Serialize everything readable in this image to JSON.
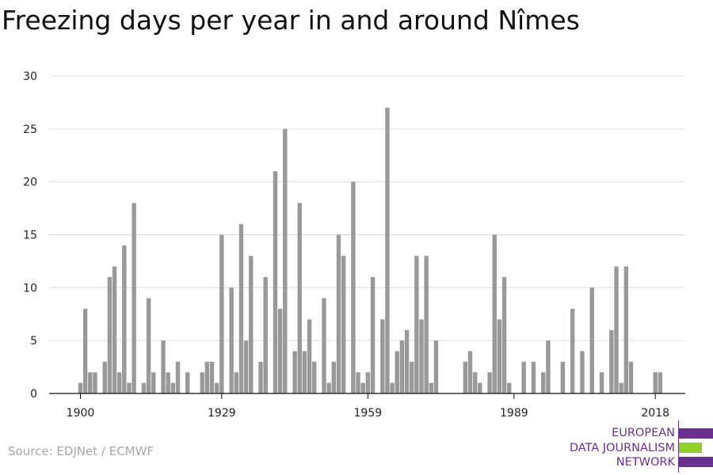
{
  "title": "Freezing days per year in and around Nîmes",
  "source": "Source: EDJNet / ECMWF",
  "logo": {
    "lines": [
      "EUROPEAN",
      "DATA JOURNALISM",
      "NETWORK"
    ],
    "colors": {
      "purple": "#6a3090",
      "green": "#8fd129"
    }
  },
  "chart_data": {
    "type": "bar",
    "title": "Freezing days per year in and around Nîmes",
    "xlabel": "",
    "ylabel": "",
    "x_start": 1900,
    "x_end": 2018,
    "x_ticks": [
      1900,
      1929,
      1959,
      1989,
      2018
    ],
    "y_ticks": [
      0,
      5,
      10,
      15,
      20,
      25,
      30
    ],
    "ylim": [
      0,
      30
    ],
    "grid": true,
    "bar_color": "#999999",
    "values": [
      1,
      8,
      2,
      2,
      0,
      3,
      11,
      12,
      2,
      14,
      1,
      18,
      0,
      1,
      9,
      2,
      0,
      5,
      2,
      1,
      3,
      0,
      2,
      0,
      0,
      2,
      3,
      3,
      1,
      15,
      0,
      10,
      2,
      16,
      5,
      13,
      0,
      3,
      11,
      0,
      21,
      8,
      25,
      0,
      4,
      18,
      4,
      7,
      3,
      0,
      9,
      1,
      3,
      15,
      13,
      0,
      20,
      2,
      1,
      2,
      11,
      0,
      7,
      27,
      1,
      4,
      5,
      6,
      3,
      13,
      7,
      13,
      1,
      5,
      0,
      0,
      0,
      0,
      0,
      3,
      4,
      2,
      1,
      0,
      2,
      15,
      7,
      11,
      1,
      0,
      0,
      3,
      0,
      3,
      0,
      2,
      5,
      0,
      0,
      3,
      0,
      8,
      0,
      4,
      0,
      10,
      0,
      2,
      0,
      6,
      12,
      1,
      12,
      3,
      0,
      0,
      0,
      0,
      2,
      2
    ]
  }
}
